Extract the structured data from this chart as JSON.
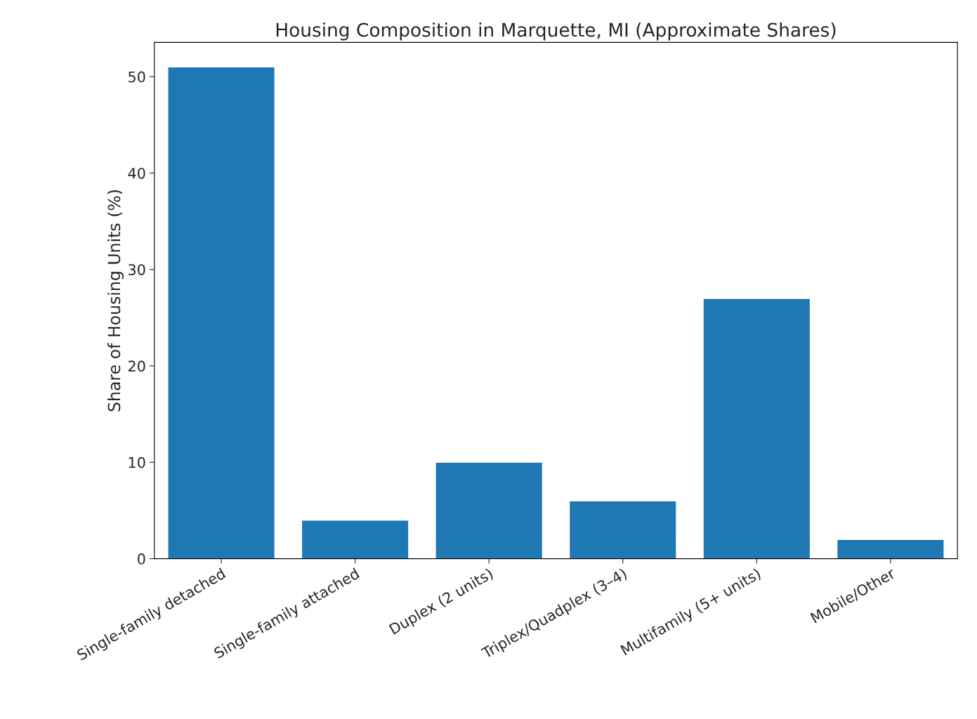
{
  "chart_data": {
    "type": "bar",
    "title": "Housing Composition in Marquette, MI (Approximate Shares)",
    "ylabel": "Share of Housing Units (%)",
    "categories": [
      "Single-family detached",
      "Single-family attached",
      "Duplex (2 units)",
      "Triplex/Quadplex (3–4)",
      "Multifamily (5+ units)",
      "Mobile/Other"
    ],
    "values": [
      51,
      4,
      10,
      6,
      27,
      2
    ],
    "color": "#1f77b4",
    "ylim": [
      0,
      53.55
    ],
    "yticks": [
      0,
      10,
      20,
      30,
      40,
      50
    ],
    "grid": false
  }
}
